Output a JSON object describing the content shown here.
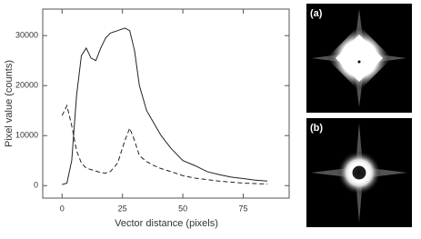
{
  "chart_data": {
    "type": "line",
    "x_label": "Vector distance (pixels)",
    "y_label": "Pixel value (counts)",
    "x": [
      0,
      2,
      4,
      6,
      8,
      10,
      12,
      14,
      16,
      18,
      20,
      23,
      26,
      28,
      30,
      32,
      35,
      38,
      41,
      45,
      50,
      55,
      60,
      65,
      70,
      75,
      80,
      85
    ],
    "series": [
      {
        "color": "#222222",
        "line_style": "solid",
        "values": [
          200,
          500,
          5000,
          18000,
          26000,
          27500,
          25500,
          25000,
          27500,
          29500,
          30500,
          31000,
          31500,
          31000,
          27000,
          20000,
          15000,
          12500,
          10000,
          7500,
          5000,
          4000,
          2800,
          2200,
          1700,
          1400,
          1100,
          900
        ]
      },
      {
        "color": "#222222",
        "line_style": "dashed",
        "values": [
          14000,
          16000,
          12000,
          7000,
          4500,
          3500,
          3200,
          2900,
          2600,
          2500,
          2800,
          4500,
          9000,
          11500,
          9000,
          6000,
          4800,
          4000,
          3400,
          2800,
          2000,
          1500,
          1200,
          900,
          700,
          500,
          400,
          300
        ]
      }
    ],
    "xlim": [
      -8,
      94
    ],
    "xticks": [
      0,
      25,
      50,
      75
    ],
    "ylim": [
      -2500,
      35300
    ],
    "yticks": [
      0,
      10000,
      20000,
      30000
    ],
    "grid": false
  },
  "panels": [
    {
      "label": "(a)"
    },
    {
      "label": "(b)"
    }
  ]
}
